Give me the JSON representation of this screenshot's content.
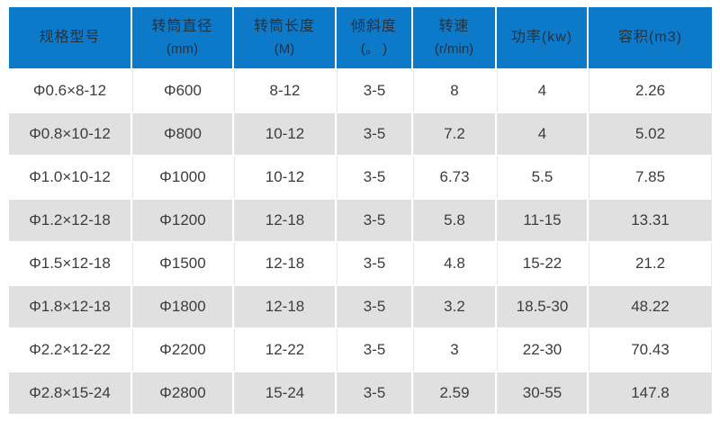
{
  "theme": {
    "header_bg": "#0d79c9",
    "header_text": "#243340",
    "row_bg": "#ffffff",
    "row_alt_bg": "#e0e0e0",
    "cell_text": "#3c3c3c",
    "grid_line": "#e6e6e6"
  },
  "table": {
    "columns": [
      {
        "id": "model",
        "label": "规格型号",
        "sub": ""
      },
      {
        "id": "diameter",
        "label": "转筒直径",
        "sub": "(mm)"
      },
      {
        "id": "length",
        "label": "转筒长度",
        "sub": "(M)"
      },
      {
        "id": "incline",
        "label": "倾斜度",
        "sub": "(。 )"
      },
      {
        "id": "speed",
        "label": "转速",
        "sub": "(r/min)"
      },
      {
        "id": "power",
        "label": "功率(kw)",
        "sub": ""
      },
      {
        "id": "volume",
        "label": "容积(m3)",
        "sub": ""
      }
    ],
    "rows": [
      {
        "cells": [
          "Φ0.6×8-12",
          "Φ600",
          "8-12",
          "3-5",
          "8",
          "4",
          "2.26"
        ]
      },
      {
        "cells": [
          "Φ0.8×10-12",
          "Φ800",
          "10-12",
          "3-5",
          "7.2",
          "4",
          "5.02"
        ]
      },
      {
        "cells": [
          "Φ1.0×10-12",
          "Φ1000",
          "10-12",
          "3-5",
          "6.73",
          "5.5",
          "7.85"
        ]
      },
      {
        "cells": [
          "Φ1.2×12-18",
          "Φ1200",
          "12-18",
          "3-5",
          "5.8",
          "11-15",
          "13.31"
        ]
      },
      {
        "cells": [
          "Φ1.5×12-18",
          "Φ1500",
          "12-18",
          "3-5",
          "4.8",
          "15-22",
          "21.2"
        ]
      },
      {
        "cells": [
          "Φ1.8×12-18",
          "Φ1800",
          "12-18",
          "3-5",
          "3.2",
          "18.5-30",
          "48.22"
        ]
      },
      {
        "cells": [
          "Φ2.2×12-22",
          "Φ2200",
          "12-22",
          "3-5",
          "3",
          "22-30",
          "70.43"
        ]
      },
      {
        "cells": [
          "Φ2.8×15-24",
          "Φ2800",
          "15-24",
          "3-5",
          "2.59",
          "30-55",
          "147.8"
        ]
      }
    ]
  }
}
